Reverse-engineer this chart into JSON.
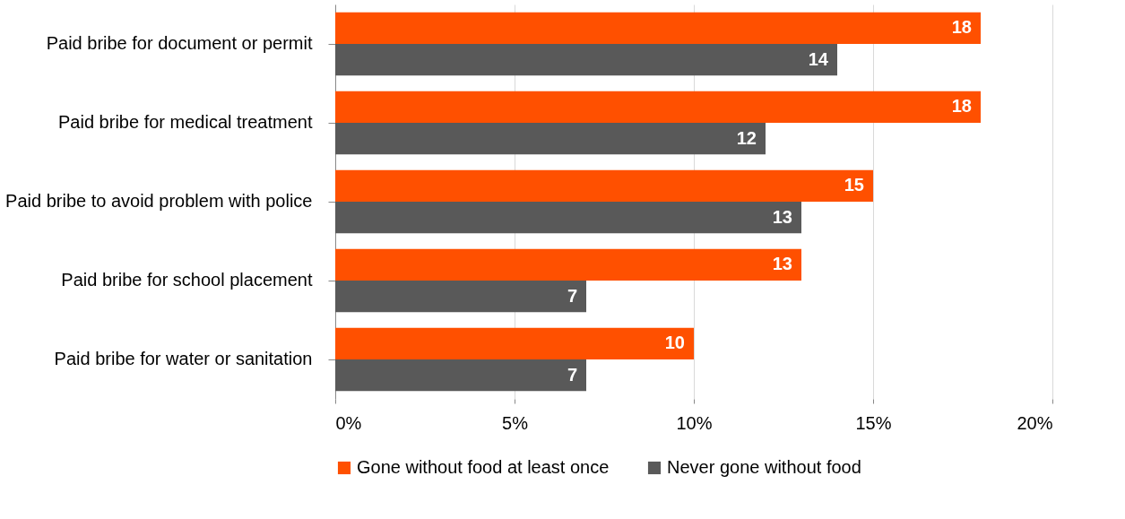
{
  "chart_data": {
    "type": "bar",
    "orientation": "horizontal",
    "categories": [
      "Paid bribe for document or permit",
      "Paid bribe for medical treatment",
      "Paid bribe to avoid problem with police",
      "Paid  bribe for school placement",
      "Paid bribe for water or sanitation"
    ],
    "series": [
      {
        "name": "Gone without food at least once",
        "color": "#ff5000",
        "values": [
          18,
          18,
          15,
          13,
          10
        ]
      },
      {
        "name": "Never gone without food",
        "color": "#595959",
        "values": [
          14,
          12,
          13,
          7,
          7
        ]
      }
    ],
    "xlim": [
      0,
      20
    ],
    "xticks": [
      {
        "value": 0,
        "label": "0%"
      },
      {
        "value": 5,
        "label": "5%"
      },
      {
        "value": 10,
        "label": "10%"
      },
      {
        "value": 15,
        "label": "15%"
      },
      {
        "value": 20,
        "label": "20%"
      }
    ],
    "grid": "x",
    "legend": "bottom",
    "data_labels": true
  }
}
